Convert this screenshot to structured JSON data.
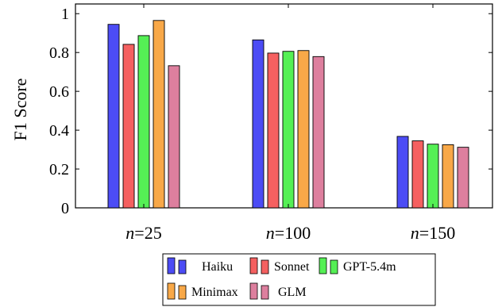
{
  "chart_data": {
    "type": "bar",
    "title": "",
    "xlabel": "",
    "ylabel": "F1 Score",
    "ylim": [
      0,
      1.05
    ],
    "yticks": [
      0,
      0.2,
      0.4,
      0.6,
      0.8,
      1
    ],
    "ytick_labels": [
      "0",
      "0.2",
      "0.4",
      "0.6",
      "0.8",
      "1"
    ],
    "categories": [
      "25",
      "100",
      "150"
    ],
    "category_prefix": "n",
    "series": [
      {
        "name": "Haiku",
        "color": "#4c4cf5",
        "values": [
          0.945,
          0.865,
          0.368
        ]
      },
      {
        "name": "Sonnet",
        "color": "#f56060",
        "values": [
          0.842,
          0.797,
          0.345
        ]
      },
      {
        "name": "GPT-5.4m",
        "color": "#55f055",
        "values": [
          0.887,
          0.806,
          0.328
        ]
      },
      {
        "name": "Minimax",
        "color": "#f8a848",
        "values": [
          0.965,
          0.81,
          0.325
        ]
      },
      {
        "name": "GLM",
        "color": "#dd7f9e",
        "values": [
          0.732,
          0.779,
          0.312
        ]
      }
    ],
    "grid": false,
    "legend_position": "bottom"
  }
}
